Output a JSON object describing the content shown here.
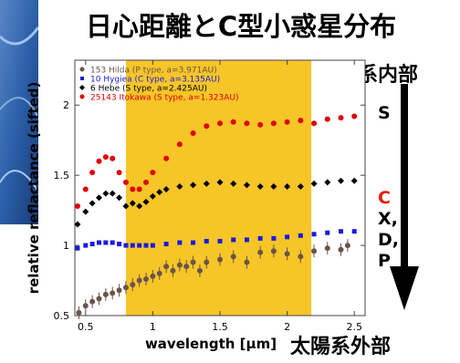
{
  "slide": {
    "title": "日心距離とC型小惑星分布",
    "inner_label": "太陽系内部",
    "outer_label": "太陽系外部",
    "classes": [
      {
        "label": "S",
        "color": "#000000"
      },
      {
        "label": "C",
        "color": "#e02000"
      },
      {
        "label": "X,",
        "color": "#000000"
      },
      {
        "label": "D,",
        "color": "#000000"
      },
      {
        "label": "P",
        "color": "#000000"
      }
    ],
    "colors": {
      "band": "#f6c528",
      "arrow": "#000000",
      "left_image": "#2b5fa8"
    }
  },
  "chart_data": {
    "type": "scatter",
    "xlabel": "wavelength [μm]",
    "ylabel": "relative reflactance (sifted)",
    "xlim": [
      0.42,
      2.58
    ],
    "ylim": [
      0.5,
      2.32
    ],
    "x_ticks": [
      0.5,
      1,
      1.5,
      2,
      2.5
    ],
    "x_tick_labels": [
      "0.5",
      "1",
      "1.5",
      "2",
      "2.5"
    ],
    "y_ticks": [
      0.5,
      1,
      1.5,
      2
    ],
    "y_tick_labels": [
      "0.5",
      "1",
      "1.5",
      "2"
    ],
    "highlight_band": {
      "x_start": 0.8,
      "x_end": 2.18
    },
    "legend_position": "top-left",
    "series": [
      {
        "name": "153 Hilda (P type, a=3.971AU)",
        "color": "#6b5448",
        "marker": "circle",
        "error_bars": true,
        "x": [
          0.45,
          0.5,
          0.55,
          0.6,
          0.65,
          0.7,
          0.75,
          0.8,
          0.85,
          0.9,
          0.95,
          1.0,
          1.05,
          1.1,
          1.15,
          1.2,
          1.25,
          1.3,
          1.35,
          1.4,
          1.5,
          1.6,
          1.7,
          1.8,
          1.9,
          2.0,
          2.1,
          2.2,
          2.3,
          2.4,
          2.45
        ],
        "y": [
          0.52,
          0.57,
          0.6,
          0.62,
          0.65,
          0.66,
          0.68,
          0.7,
          0.72,
          0.75,
          0.76,
          0.78,
          0.8,
          0.85,
          0.82,
          0.86,
          0.85,
          0.88,
          0.82,
          0.88,
          0.9,
          0.92,
          0.88,
          0.95,
          0.96,
          0.94,
          0.92,
          0.96,
          0.98,
          0.97,
          1.0
        ]
      },
      {
        "name": "10 Hygiea (C type, a=3.135AU)",
        "color": "#1a1adc",
        "marker": "square",
        "x": [
          0.44,
          0.5,
          0.55,
          0.6,
          0.65,
          0.7,
          0.75,
          0.8,
          0.85,
          0.9,
          0.95,
          1.0,
          1.1,
          1.2,
          1.3,
          1.4,
          1.5,
          1.6,
          1.7,
          1.8,
          1.9,
          2.0,
          2.1,
          2.2,
          2.3,
          2.4,
          2.5
        ],
        "y": [
          0.98,
          1.0,
          1.01,
          1.02,
          1.02,
          1.02,
          1.01,
          1.0,
          1.0,
          1.0,
          1.0,
          1.0,
          1.01,
          1.02,
          1.02,
          1.03,
          1.03,
          1.04,
          1.04,
          1.05,
          1.05,
          1.06,
          1.07,
          1.08,
          1.09,
          1.1,
          1.1
        ]
      },
      {
        "name": "6 Hebe (S type, a=2.425AU)",
        "color": "#000000",
        "marker": "diamond",
        "x": [
          0.44,
          0.5,
          0.55,
          0.6,
          0.65,
          0.7,
          0.75,
          0.8,
          0.85,
          0.9,
          0.95,
          1.0,
          1.05,
          1.1,
          1.2,
          1.3,
          1.4,
          1.5,
          1.6,
          1.7,
          1.8,
          1.9,
          2.0,
          2.1,
          2.2,
          2.3,
          2.4,
          2.5
        ],
        "y": [
          1.15,
          1.24,
          1.3,
          1.34,
          1.37,
          1.37,
          1.34,
          1.28,
          1.3,
          1.28,
          1.31,
          1.35,
          1.38,
          1.4,
          1.42,
          1.43,
          1.44,
          1.45,
          1.44,
          1.43,
          1.42,
          1.42,
          1.42,
          1.42,
          1.44,
          1.45,
          1.46,
          1.46
        ]
      },
      {
        "name": "25143 Itokawa (S type, a=1.323AU)",
        "color": "#e00000",
        "marker": "circle",
        "x": [
          0.44,
          0.5,
          0.55,
          0.6,
          0.65,
          0.7,
          0.75,
          0.8,
          0.85,
          0.9,
          0.95,
          1.0,
          1.1,
          1.2,
          1.3,
          1.4,
          1.5,
          1.6,
          1.7,
          1.8,
          1.9,
          2.0,
          2.1,
          2.2,
          2.3,
          2.4,
          2.5
        ],
        "y": [
          1.28,
          1.4,
          1.52,
          1.6,
          1.63,
          1.62,
          1.52,
          1.45,
          1.4,
          1.4,
          1.45,
          1.52,
          1.62,
          1.72,
          1.8,
          1.85,
          1.87,
          1.88,
          1.87,
          1.86,
          1.87,
          1.88,
          1.89,
          1.87,
          1.9,
          1.91,
          1.92
        ]
      }
    ]
  }
}
